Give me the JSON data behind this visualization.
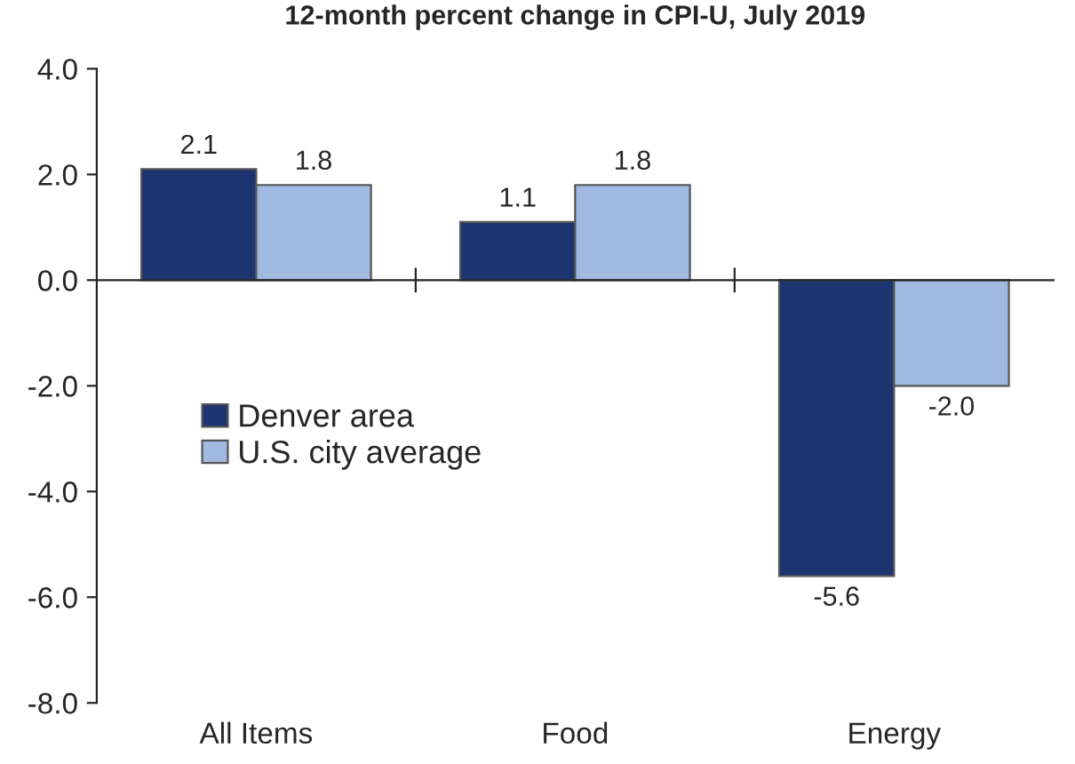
{
  "chart_data": {
    "type": "bar",
    "title": "12-month percent change in CPI-U, July 2019",
    "categories": [
      "All Items",
      "Food",
      "Energy"
    ],
    "series": [
      {
        "name": "Denver area",
        "color": "#1c3470",
        "values": [
          2.1,
          1.1,
          -5.6
        ],
        "value_labels": [
          "2.1",
          "1.1",
          "-5.6"
        ]
      },
      {
        "name": "U.S. city average",
        "color": "#9fb9e0",
        "values": [
          1.8,
          1.8,
          -2.0
        ],
        "value_labels": [
          "1.8",
          "1.8",
          "-2.0"
        ]
      }
    ],
    "ylim": [
      -8,
      4
    ],
    "yticks": [
      {
        "value": 4,
        "label": "4.0"
      },
      {
        "value": 2,
        "label": "2.0"
      },
      {
        "value": 0,
        "label": "0.0"
      },
      {
        "value": -2,
        "label": "-2.0"
      },
      {
        "value": -4,
        "label": "-4.0"
      },
      {
        "value": -6,
        "label": "-6.0"
      },
      {
        "value": -8,
        "label": "-8.0"
      }
    ],
    "legend": "left"
  }
}
